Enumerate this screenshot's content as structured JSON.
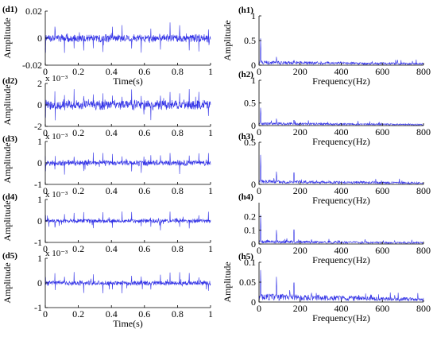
{
  "chart_data": [
    {
      "id": "d1",
      "type": "line",
      "panel_label": "(d1)",
      "ylabel": "Amplitude",
      "xlabel": "Time(s)",
      "xlim": [
        0,
        1
      ],
      "xticks": [
        "0",
        "0.2",
        "0.4",
        "0.6",
        "0.8",
        "1"
      ],
      "ylim": [
        -0.02,
        0.02
      ],
      "yticks": [
        "-0.02",
        "0",
        "0.02"
      ],
      "exponent": "",
      "signal": {
        "amplitude": 0.0035,
        "spike_amplitude": 0.012,
        "impulse_period_s": 0.058,
        "seed": 11
      }
    },
    {
      "id": "h1",
      "type": "line",
      "panel_label": "(h1)",
      "ylabel": "Amplitude",
      "xlabel": "Frequency(Hz)",
      "xlim": [
        0,
        800
      ],
      "xticks": [
        "0",
        "200",
        "400",
        "600",
        "800"
      ],
      "ylim": [
        0,
        1
      ],
      "yticks": [
        "0",
        "0.5",
        "1"
      ],
      "exponent": "",
      "signal": {
        "floor": 0.05,
        "peaks": [
          [
            8,
            0.62
          ],
          [
            85,
            0.2
          ],
          [
            170,
            0.14
          ],
          [
            255,
            0.06
          ]
        ],
        "seed": 21
      }
    },
    {
      "id": "d2",
      "type": "line",
      "panel_label": "(d2)",
      "ylabel": "Amplitude",
      "xlabel": "",
      "xlim": [
        0,
        1
      ],
      "xticks": [
        "0",
        "0.2",
        "0.4",
        "0.6",
        "0.8",
        "1"
      ],
      "ylim": [
        -2,
        2
      ],
      "yticks": [
        "-2",
        "0",
        "2"
      ],
      "exponent": "x 10⁻³",
      "signal": {
        "amplitude": 0.55,
        "spike_amplitude": 1.5,
        "impulse_period_s": 0.058,
        "seed": 12
      }
    },
    {
      "id": "h2",
      "type": "line",
      "panel_label": "(h2)",
      "ylabel": "",
      "xlabel": "Frequency(Hz)",
      "xlim": [
        0,
        800
      ],
      "xticks": [
        "0",
        "200",
        "400",
        "600",
        "800"
      ],
      "ylim": [
        0,
        1
      ],
      "yticks": [
        "0",
        "0.5",
        "1"
      ],
      "exponent": "",
      "signal": {
        "floor": 0.04,
        "peaks": [
          [
            8,
            0.45
          ],
          [
            85,
            0.18
          ],
          [
            170,
            0.17
          ],
          [
            255,
            0.06
          ]
        ],
        "seed": 22
      }
    },
    {
      "id": "d3",
      "type": "line",
      "panel_label": "(d3)",
      "ylabel": "Amplitude",
      "xlabel": "",
      "xlim": [
        0,
        1
      ],
      "xticks": [
        "0",
        "0.2",
        "0.4",
        "0.6",
        "0.8",
        "1"
      ],
      "ylim": [
        -1,
        1
      ],
      "yticks": [
        "-1",
        "0",
        "1"
      ],
      "exponent": "x 10⁻³",
      "signal": {
        "amplitude": 0.16,
        "spike_amplitude": 0.55,
        "impulse_period_s": 0.058,
        "seed": 13
      }
    },
    {
      "id": "h3",
      "type": "line",
      "panel_label": "(h3)",
      "ylabel": "",
      "xlabel": "Frequency(Hz)",
      "xlim": [
        0,
        800
      ],
      "xticks": [
        "0",
        "200",
        "400",
        "600",
        "800"
      ],
      "ylim": [
        0,
        0.5
      ],
      "yticks": [
        "0",
        "0.5"
      ],
      "exponent": "",
      "signal": {
        "floor": 0.03,
        "peaks": [
          [
            8,
            0.4
          ],
          [
            85,
            0.18
          ],
          [
            170,
            0.2
          ],
          [
            255,
            0.05
          ]
        ],
        "seed": 23
      }
    },
    {
      "id": "d4",
      "type": "line",
      "panel_label": "(d4)",
      "ylabel": "Amplitude",
      "xlabel": "",
      "xlim": [
        0,
        1
      ],
      "xticks": [
        "0",
        "0.2",
        "0.4",
        "0.6",
        "0.8",
        "1"
      ],
      "ylim": [
        -1,
        1
      ],
      "yticks": [
        "-1",
        "0",
        "1"
      ],
      "exponent": "x 10⁻³",
      "signal": {
        "amplitude": 0.12,
        "spike_amplitude": 0.45,
        "impulse_period_s": 0.058,
        "seed": 14
      }
    },
    {
      "id": "h4",
      "type": "line",
      "panel_label": "(h4)",
      "ylabel": "",
      "xlabel": "Frequency(Hz)",
      "xlim": [
        0,
        800
      ],
      "xticks": [
        "0",
        "200",
        "400",
        "600",
        "800"
      ],
      "ylim": [
        0,
        0.3
      ],
      "yticks": [
        "0",
        "0.1",
        "0.2"
      ],
      "exponent": "",
      "signal": {
        "floor": 0.015,
        "peaks": [
          [
            8,
            0.24
          ],
          [
            85,
            0.12
          ],
          [
            170,
            0.15
          ],
          [
            255,
            0.04
          ]
        ],
        "seed": 24
      }
    },
    {
      "id": "d5",
      "type": "line",
      "panel_label": "(d5)",
      "ylabel": "Amplitude",
      "xlabel": "Time(s)",
      "xlim": [
        0,
        1
      ],
      "xticks": [
        "0",
        "0.2",
        "0.4",
        "0.6",
        "0.8",
        "1"
      ],
      "ylim": [
        -1,
        1
      ],
      "yticks": [
        "-1",
        "0",
        "1"
      ],
      "exponent": "x 10⁻³",
      "signal": {
        "amplitude": 0.12,
        "spike_amplitude": 0.45,
        "impulse_period_s": 0.058,
        "seed": 15
      }
    },
    {
      "id": "h5",
      "type": "line",
      "panel_label": "(h5)",
      "ylabel": "Amplitude",
      "xlabel": "Frequency(Hz)",
      "xlim": [
        0,
        800
      ],
      "xticks": [
        "0",
        "200",
        "400",
        "600",
        "800"
      ],
      "ylim": [
        0,
        0.1
      ],
      "yticks": [
        "0",
        "0.05",
        "0.1"
      ],
      "exponent": "",
      "signal": {
        "floor": 0.012,
        "peaks": [
          [
            8,
            0.09
          ],
          [
            85,
            0.075
          ],
          [
            170,
            0.07
          ],
          [
            255,
            0.02
          ]
        ],
        "seed": 25
      }
    }
  ],
  "colors": {
    "signal": "#3232e6",
    "axis": "#000000"
  }
}
